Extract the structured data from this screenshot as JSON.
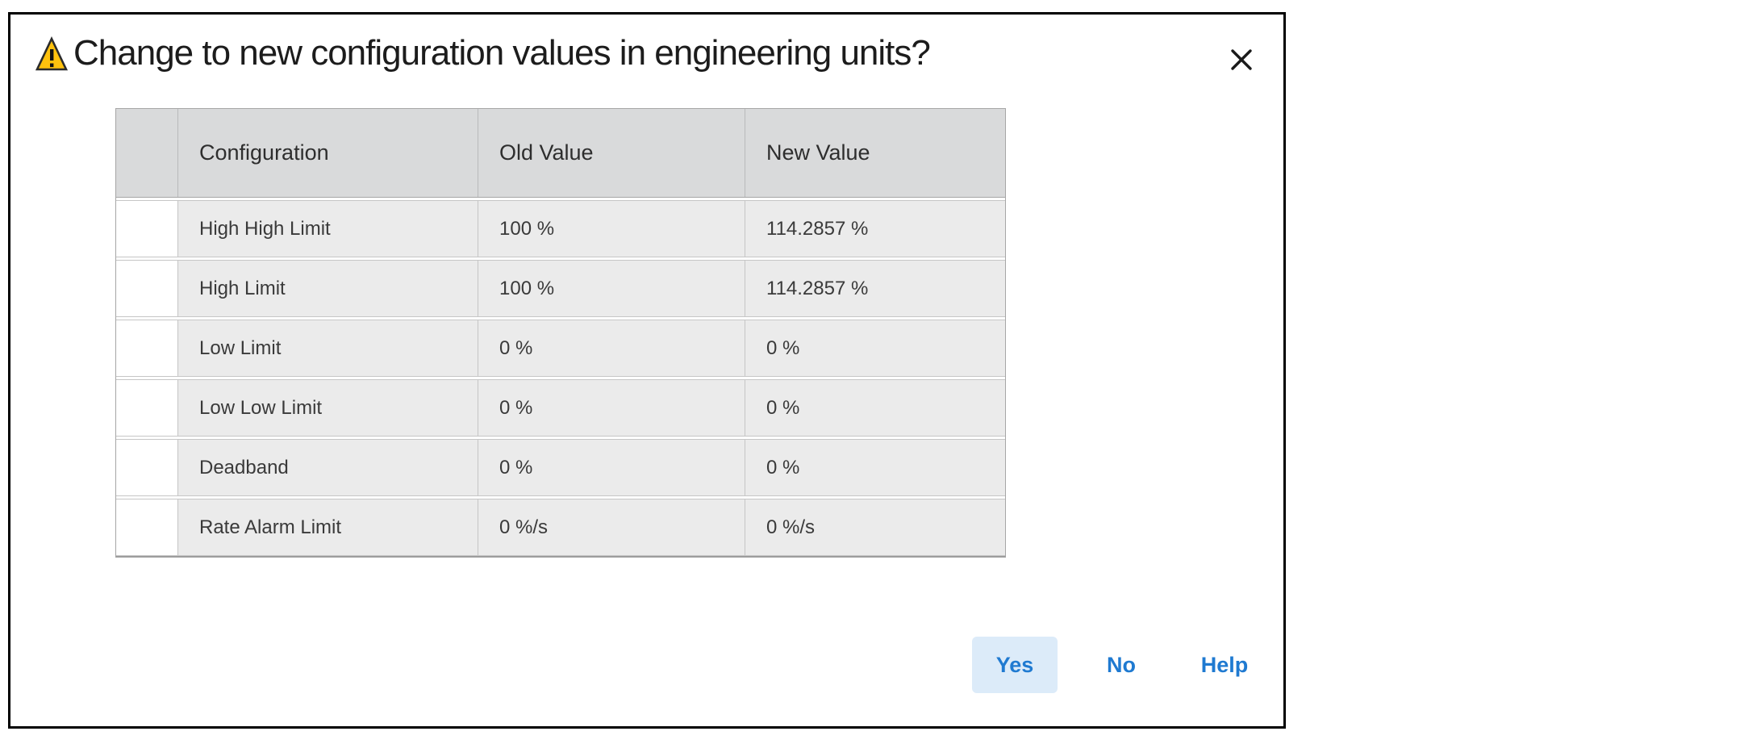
{
  "dialog": {
    "title": "Change to new configuration values in engineering units?",
    "icons": {
      "warning": "warning-triangle",
      "close": "close-x"
    }
  },
  "table": {
    "columns": [
      "",
      "Configuration",
      "Old Value",
      "New Value"
    ],
    "rows": [
      {
        "configuration": "High High Limit",
        "old_value": "100 %",
        "new_value": "114.2857 %"
      },
      {
        "configuration": "High Limit",
        "old_value": "100 %",
        "new_value": "114.2857 %"
      },
      {
        "configuration": "Low Limit",
        "old_value": "0 %",
        "new_value": "0 %"
      },
      {
        "configuration": "Low Low Limit",
        "old_value": "0 %",
        "new_value": "0 %"
      },
      {
        "configuration": "Deadband",
        "old_value": "0 %",
        "new_value": "0 %"
      },
      {
        "configuration": "Rate Alarm Limit",
        "old_value": "0 %/s",
        "new_value": "0 %/s"
      }
    ]
  },
  "buttons": {
    "yes": "Yes",
    "no": "No",
    "help": "Help"
  },
  "colors": {
    "accent_blue": "#1f7ad1",
    "yes_button_bg": "#dcebf9",
    "header_bg": "#d9dadb",
    "row_bg": "#ebebeb",
    "warning_fill": "#ffc20e",
    "dialog_border": "#000000"
  }
}
